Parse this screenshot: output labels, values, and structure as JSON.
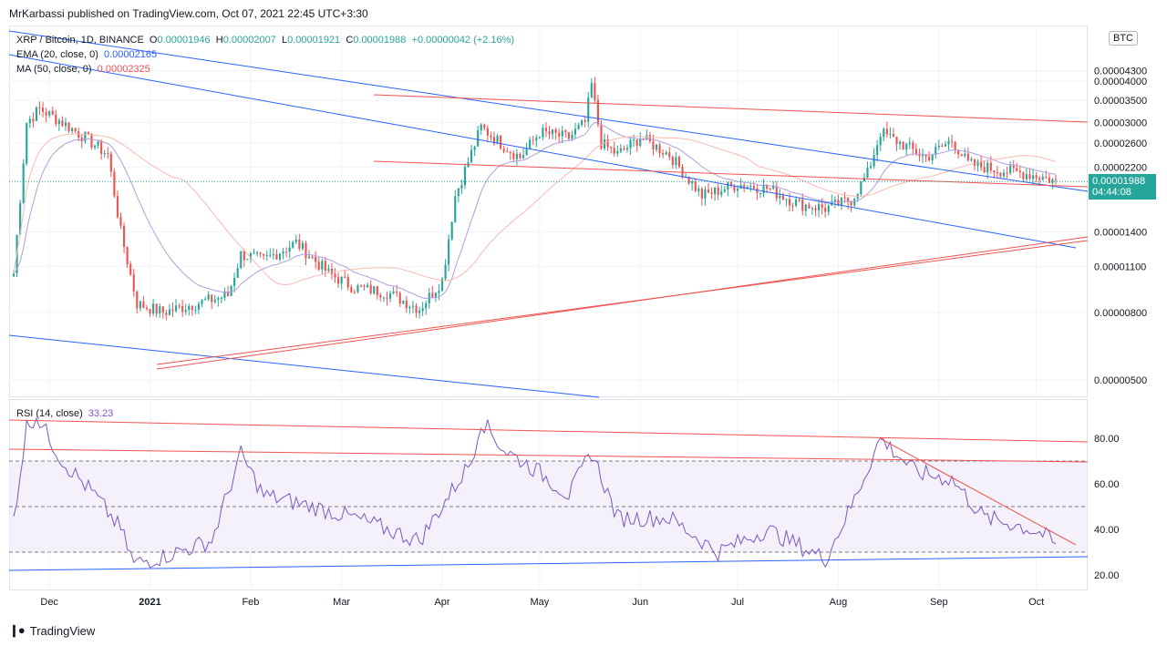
{
  "header": {
    "publisher": "MrKarbassi published on TradingView.com, Oct 07, 2021 22:45 UTC+3:30"
  },
  "legend": {
    "symbol": "XRP / Bitcoin, 1D, BINANCE",
    "o_label": "O",
    "o_val": "0.00001946",
    "h_label": "H",
    "h_val": "0.00002007",
    "l_label": "L",
    "l_val": "0.00001921",
    "c_label": "C",
    "c_val": "0.00001988",
    "change": "+0.00000042 (+2.16%)",
    "ema_label": "EMA (20, close, 0)",
    "ema_val": "0.00002165",
    "ma_label": "MA (50, close, 0)",
    "ma_val": "0.00002325"
  },
  "rsi": {
    "label": "RSI (14, close)",
    "value": "33.23"
  },
  "price_tag": {
    "price": "0.00001988",
    "countdown": "04:44:08"
  },
  "currency_button": "BTC",
  "footer": {
    "brand": "TradingView"
  },
  "colors": {
    "up": "#26a69a",
    "down": "#ef5350",
    "ema": "#b39ddb",
    "ma": "#f8bbaf",
    "trend_blue": "#2962ff",
    "trend_red": "#ef5350",
    "rsi": "#7e57c2",
    "rsi_band": "#ede7f6"
  },
  "chart_data": [
    {
      "type": "candlestick",
      "title": "XRP / Bitcoin, 1D, BINANCE",
      "y_scale": "log",
      "y_ticks": [
        "0.00004300",
        "0.00004000",
        "0.00003500",
        "0.00003000",
        "0.00002600",
        "0.00002200",
        "0.00001400",
        "0.00001100",
        "0.00000800",
        "0.00000500"
      ],
      "x_ticks": [
        "Dec",
        "2021",
        "Feb",
        "Mar",
        "Apr",
        "May",
        "Jun",
        "Jul",
        "Aug",
        "Sep",
        "Oct"
      ],
      "close_series_approx": [
        [
          "Nov 20",
          1.05e-05
        ],
        [
          "Nov 24",
          3e-05
        ],
        [
          "Nov 28",
          3.3e-05
        ],
        [
          "Dec 05",
          3e-05
        ],
        [
          "Dec 12",
          2.7e-05
        ],
        [
          "Dec 19",
          2.4e-05
        ],
        [
          "Dec 23",
          1.4e-05
        ],
        [
          "Dec 28",
          8.5e-06
        ],
        [
          "Jan 05",
          8e-06
        ],
        [
          "Jan 15",
          8.5e-06
        ],
        [
          "Jan 25",
          9e-06
        ],
        [
          "Jan 29",
          1.2e-05
        ],
        [
          "Feb 05",
          1.15e-05
        ],
        [
          "Feb 15",
          1.3e-05
        ],
        [
          "Feb 25",
          1.05e-05
        ],
        [
          "Mar 05",
          9.5e-06
        ],
        [
          "Mar 15",
          9.2e-06
        ],
        [
          "Mar 25",
          8.2e-06
        ],
        [
          "Apr 01",
          1e-05
        ],
        [
          "Apr 05",
          1.8e-05
        ],
        [
          "Apr 13",
          2.9e-05
        ],
        [
          "Apr 20",
          2.55e-05
        ],
        [
          "Apr 25",
          2.35e-05
        ],
        [
          "May 01",
          2.8e-05
        ],
        [
          "May 10",
          2.7e-05
        ],
        [
          "May 15",
          3e-05
        ],
        [
          "May 17",
          3.9e-05
        ],
        [
          "May 20",
          2.6e-05
        ],
        [
          "May 25",
          2.4e-05
        ],
        [
          "Jun 01",
          2.7e-05
        ],
        [
          "Jun 10",
          2.4e-05
        ],
        [
          "Jun 20",
          1.8e-05
        ],
        [
          "Jul 01",
          1.95e-05
        ],
        [
          "Jul 10",
          1.9e-05
        ],
        [
          "Jul 20",
          1.7e-05
        ],
        [
          "Jul 28",
          1.65e-05
        ],
        [
          "Aug 05",
          1.75e-05
        ],
        [
          "Aug 10",
          2.1e-05
        ],
        [
          "Aug 14",
          2.8e-05
        ],
        [
          "Aug 20",
          2.6e-05
        ],
        [
          "Aug 28",
          2.35e-05
        ],
        [
          "Sep 05",
          2.65e-05
        ],
        [
          "Sep 10",
          2.25e-05
        ],
        [
          "Sep 20",
          2.15e-05
        ],
        [
          "Sep 28",
          2.1e-05
        ],
        [
          "Oct 03",
          2.05e-05
        ],
        [
          "Oct 07",
          1.99e-05
        ]
      ]
    },
    {
      "type": "line",
      "title": "RSI (14, close)",
      "y_ticks": [
        "80.00",
        "60.00",
        "40.00",
        "20.00"
      ],
      "bands": [
        70,
        50,
        30
      ],
      "x_ticks": [
        "Dec",
        "2021",
        "Feb",
        "Mar",
        "Apr",
        "May",
        "Jun",
        "Jul",
        "Aug",
        "Sep",
        "Oct"
      ],
      "values_approx": [
        [
          "Nov 20",
          45
        ],
        [
          "Nov 24",
          85
        ],
        [
          "Nov 27",
          90
        ],
        [
          "Dec 05",
          70
        ],
        [
          "Dec 15",
          55
        ],
        [
          "Dec 23",
          40
        ],
        [
          "Dec 27",
          25
        ],
        [
          "Jan 05",
          28
        ],
        [
          "Jan 20",
          35
        ],
        [
          "Jan 29",
          73
        ],
        [
          "Feb 05",
          55
        ],
        [
          "Feb 20",
          50
        ],
        [
          "Mar 05",
          45
        ],
        [
          "Mar 25",
          35
        ],
        [
          "Apr 10",
          70
        ],
        [
          "Apr 13",
          88
        ],
        [
          "Apr 20",
          75
        ],
        [
          "May 01",
          65
        ],
        [
          "May 10",
          55
        ],
        [
          "May 17",
          74
        ],
        [
          "May 25",
          45
        ],
        [
          "Jun 10",
          45
        ],
        [
          "Jun 25",
          30
        ],
        [
          "Jul 10",
          40
        ],
        [
          "Jul 28",
          27
        ],
        [
          "Aug 05",
          50
        ],
        [
          "Aug 14",
          80
        ],
        [
          "Aug 25",
          65
        ],
        [
          "Sep 05",
          62
        ],
        [
          "Sep 15",
          45
        ],
        [
          "Sep 25",
          42
        ],
        [
          "Oct 03",
          38
        ],
        [
          "Oct 07",
          33
        ]
      ]
    }
  ]
}
